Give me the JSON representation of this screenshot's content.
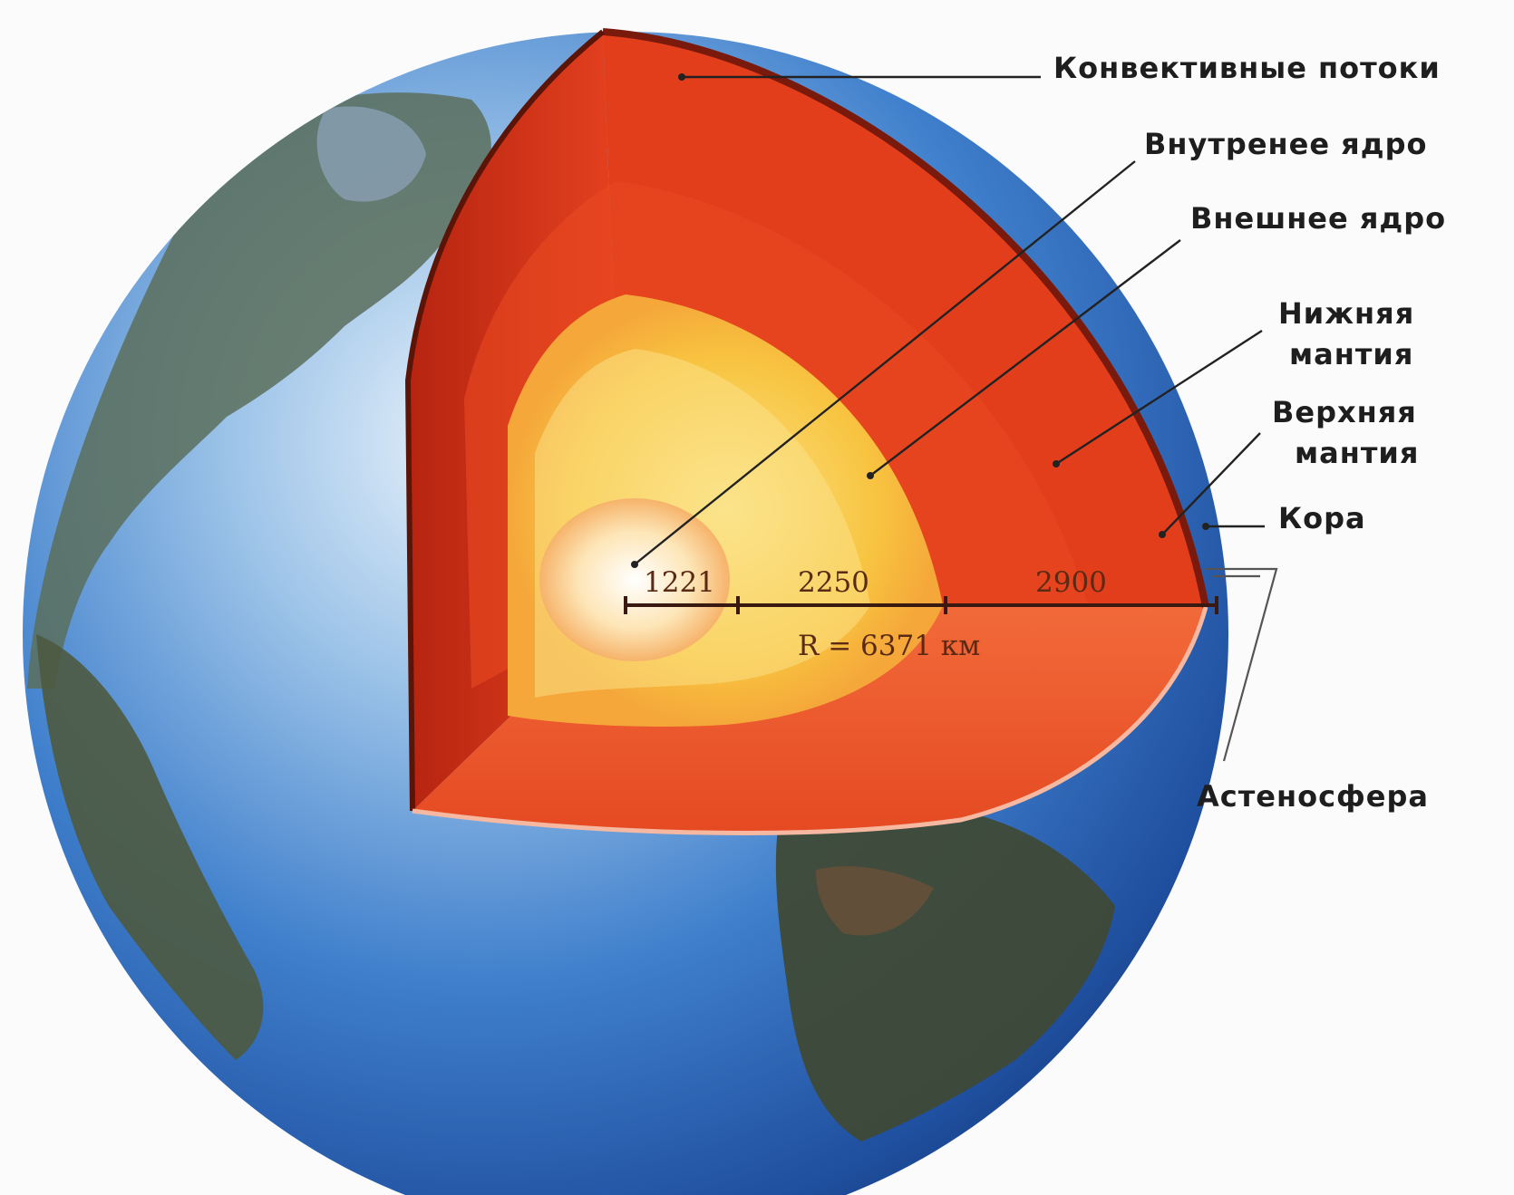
{
  "labels": {
    "convection": "Конвективные потоки",
    "inner_core": "Внутренее ядро",
    "outer_core": "Внешнее ядро",
    "lower_mantle_1": "Нижняя",
    "lower_mantle_2": "мантия",
    "upper_mantle_1": "Верхняя",
    "upper_mantle_2": "мантия",
    "crust": "Кора",
    "asthenosphere": "Астеносфера"
  },
  "scale": {
    "inner_core_radius": "1221",
    "outer_core_thickness": "2250",
    "mantle_thickness": "2900",
    "radius_label": "R = 6371 км"
  },
  "colors": {
    "ocean": "#2f6fc0",
    "land": "#3c5a3a",
    "mantle": "#e8401c",
    "outer_core": "#f8c540",
    "inner_core": "#fde7b8",
    "background": "#fbfbfb"
  }
}
